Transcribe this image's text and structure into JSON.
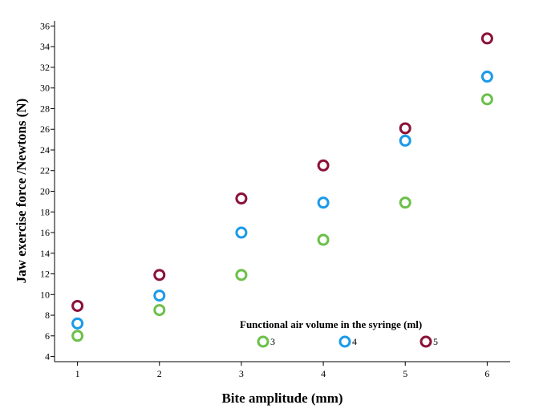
{
  "chart_data": {
    "type": "scatter",
    "title": "",
    "xlabel": "Bite amplitude (mm)",
    "ylabel": "Jaw exercise force /Newtons (N)",
    "xlim": [
      0.72,
      6.28
    ],
    "ylim": [
      3.5,
      36.5
    ],
    "x_ticks": [
      1,
      2,
      3,
      4,
      5,
      6
    ],
    "y_ticks": [
      4,
      6,
      8,
      10,
      12,
      14,
      16,
      18,
      20,
      22,
      24,
      26,
      28,
      30,
      32,
      34,
      36
    ],
    "grid": false,
    "legend": {
      "title": "Functional air volume in the syringe  (ml)",
      "placement": "bottom-right"
    },
    "series": [
      {
        "name": "3",
        "color": "#6cc04a",
        "x": [
          1,
          2,
          3,
          4,
          5,
          6
        ],
        "y": [
          6,
          8.5,
          11.9,
          15.3,
          18.9,
          28.9
        ]
      },
      {
        "name": "4",
        "color": "#1b9ae8",
        "x": [
          1,
          2,
          3,
          4,
          5,
          6
        ],
        "y": [
          7.2,
          9.9,
          16,
          18.9,
          24.9,
          31.1
        ]
      },
      {
        "name": "5",
        "color": "#8b1238",
        "x": [
          1,
          2,
          3,
          4,
          5,
          6
        ],
        "y": [
          8.9,
          11.9,
          19.3,
          22.5,
          26.1,
          34.8
        ]
      }
    ]
  }
}
